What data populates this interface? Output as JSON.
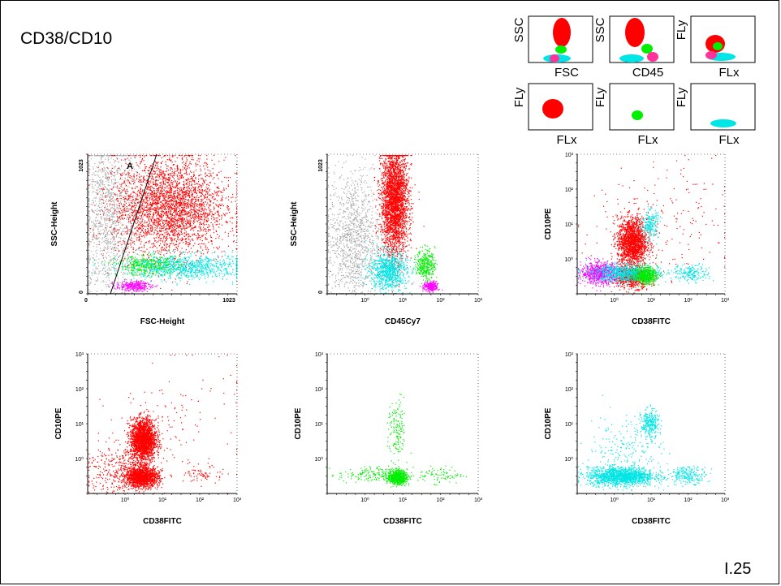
{
  "title": "CD38/CD10",
  "slide_number": "I.25",
  "colors": {
    "red": "#ff0000",
    "green": "#00ee00",
    "cyan": "#00e5e5",
    "magenta": "#ff00ff",
    "pink": "#ff3399",
    "gray": "#aaaaaa"
  },
  "legend": {
    "panels": [
      {
        "ylabel": "SSC",
        "xlabel": "FSC"
      },
      {
        "ylabel": "SSC",
        "xlabel": "CD45"
      },
      {
        "ylabel": "FLy",
        "xlabel": "FLx"
      },
      {
        "ylabel": "FLy",
        "xlabel": "FLx"
      },
      {
        "ylabel": "FLy",
        "xlabel": "FLx"
      },
      {
        "ylabel": "FLy",
        "xlabel": "FLx"
      }
    ]
  },
  "chart_data": [
    {
      "type": "scatter",
      "xlabel": "FSC-Height",
      "ylabel": "SSC-Height",
      "scale": "linear",
      "xlim": [
        0,
        1023
      ],
      "ylim": [
        0,
        1023
      ],
      "x_ticks": [
        "0",
        "1023"
      ],
      "y_ticks": [
        "0",
        "1023"
      ],
      "gate_label": "A",
      "populations": [
        {
          "color": "gray",
          "x": 150,
          "y": 560,
          "sx": 110,
          "sy": 330,
          "n": 1400
        },
        {
          "color": "red",
          "x": 560,
          "y": 640,
          "sx": 190,
          "sy": 180,
          "n": 3200
        },
        {
          "color": "green",
          "x": 420,
          "y": 210,
          "sx": 110,
          "sy": 35,
          "n": 450
        },
        {
          "color": "cyan",
          "x": 680,
          "y": 200,
          "sx": 210,
          "sy": 45,
          "n": 900
        },
        {
          "color": "magenta",
          "x": 310,
          "y": 60,
          "sx": 60,
          "sy": 18,
          "n": 300
        }
      ]
    },
    {
      "type": "scatter",
      "xlabel": "CD45Cy7",
      "ylabel": "SSC-Height",
      "scale": "log-x",
      "xlim": [
        0.1,
        1000
      ],
      "ylim": [
        0,
        1023
      ],
      "x_ticks": [
        "10⁰",
        "10¹",
        "10²",
        "10³"
      ],
      "y_ticks": [
        "0",
        "1023"
      ],
      "populations": [
        {
          "color": "gray",
          "x": 0.5,
          "y": 400,
          "sx": 0.35,
          "sy": 250,
          "n": 1200
        },
        {
          "color": "red",
          "x": 6,
          "y": 680,
          "sx": 0.18,
          "sy": 200,
          "n": 3000
        },
        {
          "color": "cyan",
          "x": 4,
          "y": 170,
          "sx": 0.25,
          "sy": 70,
          "n": 900
        },
        {
          "color": "green",
          "x": 40,
          "y": 220,
          "sx": 0.12,
          "sy": 55,
          "n": 350
        },
        {
          "color": "magenta",
          "x": 55,
          "y": 55,
          "sx": 0.1,
          "sy": 18,
          "n": 250
        }
      ]
    },
    {
      "type": "scatter",
      "xlabel": "CD38FITC",
      "ylabel": "CD10PE",
      "scale": "log",
      "xlim": [
        0.1,
        1000
      ],
      "ylim": [
        0.1,
        1000
      ],
      "x_ticks": [
        "10⁰",
        "10¹",
        "10²",
        "10³"
      ],
      "y_ticks": [
        "10⁰",
        "10¹",
        "10²",
        "10³"
      ],
      "populations": [
        {
          "color": "red",
          "x": 3,
          "y": 3,
          "sx": 0.2,
          "sy": 0.35,
          "n": 1800
        },
        {
          "color": "red",
          "x": 3,
          "y": 0.3,
          "sx": 0.25,
          "sy": 0.15,
          "n": 700
        },
        {
          "color": "magenta",
          "x": 0.4,
          "y": 0.4,
          "sx": 0.25,
          "sy": 0.15,
          "n": 800
        },
        {
          "color": "cyan",
          "x": 2,
          "y": 0.4,
          "sx": 0.45,
          "sy": 0.12,
          "n": 900
        },
        {
          "color": "cyan",
          "x": 9,
          "y": 10,
          "sx": 0.12,
          "sy": 0.2,
          "n": 220
        },
        {
          "color": "green",
          "x": 7,
          "y": 0.35,
          "sx": 0.15,
          "sy": 0.12,
          "n": 500
        },
        {
          "color": "cyan",
          "x": 120,
          "y": 0.4,
          "sx": 0.25,
          "sy": 0.12,
          "n": 200
        },
        {
          "color": "red",
          "x": 20,
          "y": 10,
          "sx": 1.0,
          "sy": 0.9,
          "n": 180
        }
      ]
    },
    {
      "type": "scatter",
      "xlabel": "CD38FITC",
      "ylabel": "CD10PE",
      "scale": "log",
      "xlim": [
        0.1,
        1000
      ],
      "ylim": [
        0.1,
        1000
      ],
      "x_ticks": [
        "10⁰",
        "10¹",
        "10²",
        "10³"
      ],
      "y_ticks": [
        "10⁰",
        "10¹",
        "10²",
        "10³"
      ],
      "populations": [
        {
          "color": "red",
          "x": 3,
          "y": 3.5,
          "sx": 0.17,
          "sy": 0.3,
          "n": 2200
        },
        {
          "color": "red",
          "x": 2.8,
          "y": 0.3,
          "sx": 0.22,
          "sy": 0.14,
          "n": 1500
        },
        {
          "color": "red",
          "x": 0.6,
          "y": 0.5,
          "sx": 0.45,
          "sy": 0.35,
          "n": 350
        },
        {
          "color": "red",
          "x": 130,
          "y": 0.35,
          "sx": 0.25,
          "sy": 0.12,
          "n": 70
        },
        {
          "color": "red",
          "x": 25,
          "y": 15,
          "sx": 0.9,
          "sy": 0.9,
          "n": 120
        }
      ]
    },
    {
      "type": "scatter",
      "xlabel": "CD38FITC",
      "ylabel": "CD10PE",
      "scale": "log",
      "xlim": [
        0.1,
        1000
      ],
      "ylim": [
        0.1,
        1000
      ],
      "x_ticks": [
        "10⁰",
        "10¹",
        "10²",
        "10³"
      ],
      "y_ticks": [
        "10⁰",
        "10¹",
        "10²",
        "10³"
      ],
      "populations": [
        {
          "color": "green",
          "x": 7,
          "y": 0.3,
          "sx": 0.13,
          "sy": 0.1,
          "n": 750
        },
        {
          "color": "green",
          "x": 7,
          "y": 6,
          "sx": 0.12,
          "sy": 0.45,
          "n": 150
        },
        {
          "color": "green",
          "x": 1.2,
          "y": 0.35,
          "sx": 0.4,
          "sy": 0.12,
          "n": 150
        },
        {
          "color": "green",
          "x": 100,
          "y": 0.35,
          "sx": 0.3,
          "sy": 0.12,
          "n": 90
        }
      ]
    },
    {
      "type": "scatter",
      "xlabel": "CD38FITC",
      "ylabel": "CD10PE",
      "scale": "log",
      "xlim": [
        0.1,
        1000
      ],
      "ylim": [
        0.1,
        1000
      ],
      "x_ticks": [
        "10⁰",
        "10¹",
        "10²",
        "10³"
      ],
      "y_ticks": [
        "10⁰",
        "10¹",
        "10²",
        "10³"
      ],
      "populations": [
        {
          "color": "cyan",
          "x": 1.5,
          "y": 0.32,
          "sx": 0.45,
          "sy": 0.13,
          "n": 1600
        },
        {
          "color": "cyan",
          "x": 9,
          "y": 10,
          "sx": 0.12,
          "sy": 0.2,
          "n": 300
        },
        {
          "color": "cyan",
          "x": 100,
          "y": 0.35,
          "sx": 0.25,
          "sy": 0.12,
          "n": 220
        },
        {
          "color": "cyan",
          "x": 2,
          "y": 2,
          "sx": 0.5,
          "sy": 0.5,
          "n": 200
        }
      ]
    }
  ]
}
